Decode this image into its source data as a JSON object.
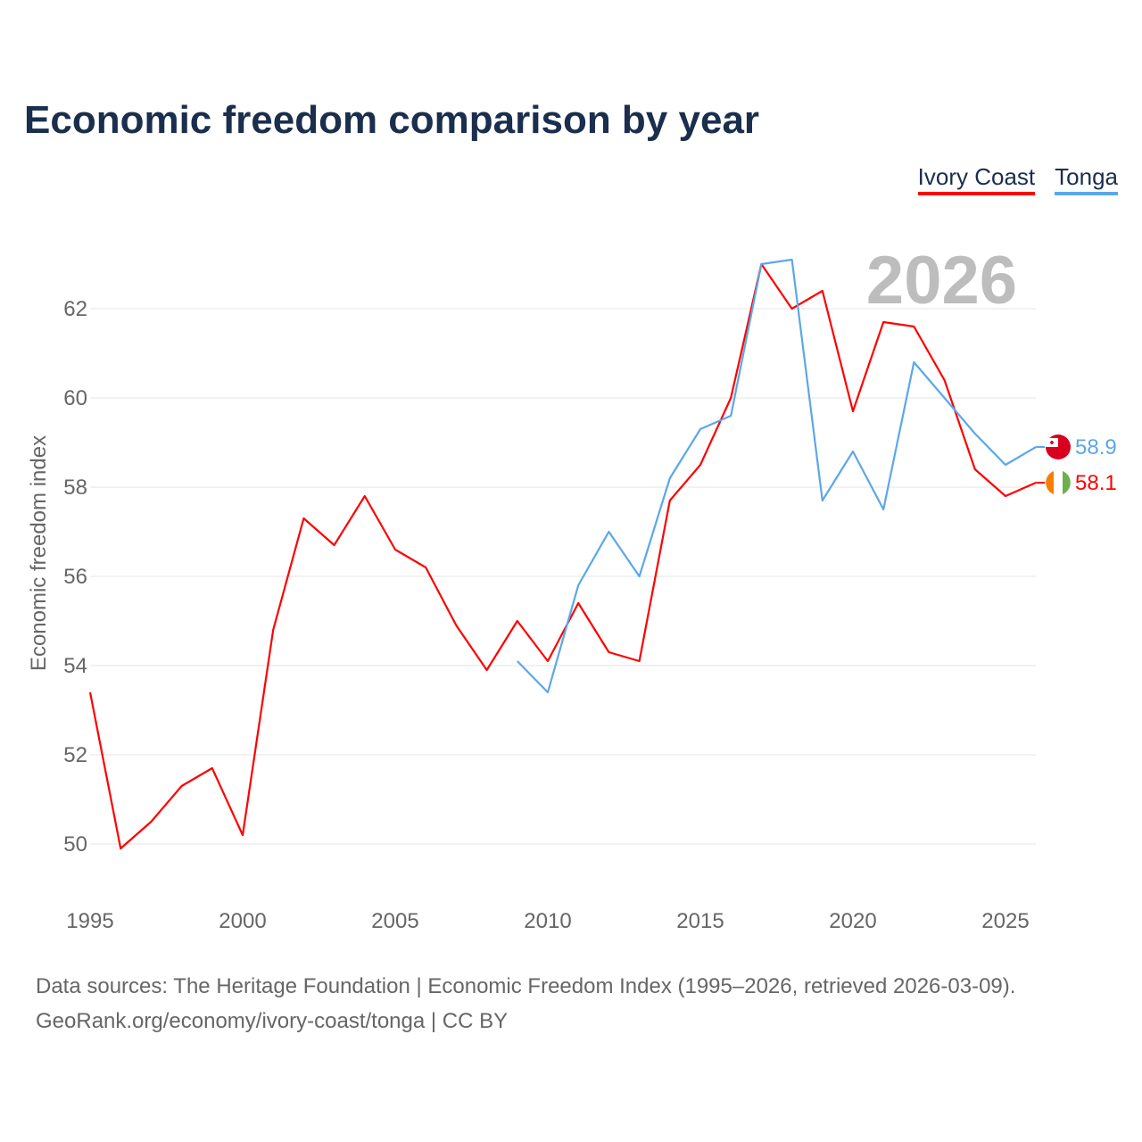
{
  "title": "Economic freedom comparison by year",
  "footer": {
    "line1": "Data sources: The Heritage Foundation | Economic Freedom Index (1995–2026, retrieved 2026-03-09).",
    "line2": "GeoRank.org/economy/ivory-coast/tonga | CC BY"
  },
  "chart_data": {
    "type": "line",
    "title": "Economic freedom comparison by year",
    "xlabel": "",
    "ylabel": "Economic freedom index",
    "year_label": "2026",
    "xlim": [
      1995,
      2026
    ],
    "ylim": [
      48.9,
      63.5
    ],
    "x_ticks": [
      1995,
      2000,
      2005,
      2010,
      2015,
      2020,
      2025
    ],
    "y_ticks": [
      50,
      52,
      54,
      56,
      58,
      60,
      62
    ],
    "grid": true,
    "legend_position": "top-right",
    "series": [
      {
        "name": "Ivory Coast",
        "color": "#ff0000",
        "end_label": "58.1",
        "x": [
          1995,
          1996,
          1997,
          1998,
          1999,
          2000,
          2001,
          2002,
          2003,
          2004,
          2005,
          2006,
          2007,
          2008,
          2009,
          2010,
          2011,
          2012,
          2013,
          2014,
          2015,
          2016,
          2017,
          2018,
          2019,
          2020,
          2021,
          2022,
          2023,
          2024,
          2025,
          2026
        ],
        "values": [
          53.4,
          49.9,
          50.5,
          51.3,
          51.7,
          50.2,
          54.8,
          57.3,
          56.7,
          57.8,
          56.6,
          56.2,
          54.9,
          53.9,
          55.0,
          54.1,
          55.4,
          54.3,
          54.1,
          57.7,
          58.5,
          60.0,
          63.0,
          62.0,
          62.4,
          59.7,
          61.7,
          61.6,
          60.4,
          58.4,
          57.8,
          58.1
        ]
      },
      {
        "name": "Tonga",
        "color": "#5ba7ea",
        "end_label": "58.9",
        "x": [
          2009,
          2010,
          2011,
          2012,
          2013,
          2014,
          2015,
          2016,
          2017,
          2018,
          2019,
          2020,
          2021,
          2022,
          2023,
          2024,
          2025,
          2026
        ],
        "values": [
          54.1,
          53.4,
          55.8,
          57.0,
          56.0,
          58.2,
          59.3,
          59.6,
          63.0,
          63.1,
          57.7,
          58.8,
          57.5,
          60.8,
          60.0,
          59.2,
          58.5,
          58.9
        ]
      }
    ]
  }
}
